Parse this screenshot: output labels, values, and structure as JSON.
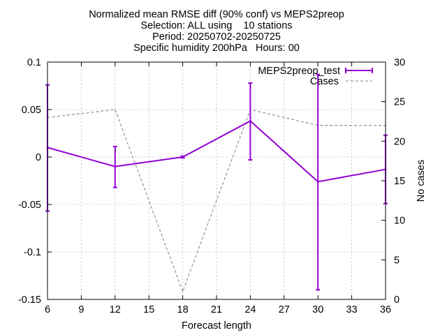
{
  "chart_data": {
    "type": "line",
    "title_lines": [
      "Normalized mean RMSE diff (90% conf) vs MEPS2preop",
      "Selection: ALL using    10 stations",
      "Period: 20250702-20250725",
      "Specific humidity 200hPa   Hours: 00"
    ],
    "xlabel": "Forecast length",
    "ylabel": "",
    "y2label": "No cases",
    "xlim": [
      6,
      36
    ],
    "ylim": [
      -0.15,
      0.1
    ],
    "y2lim": [
      0,
      30
    ],
    "xticks": [
      6,
      9,
      12,
      15,
      18,
      21,
      24,
      27,
      30,
      33,
      36
    ],
    "yticks": [
      0.1,
      0.05,
      0,
      -0.05,
      -0.1,
      -0.15
    ],
    "ytick_labels": [
      "0.1",
      "0.05",
      "0",
      "-0.05",
      "-0.1",
      "-0.15"
    ],
    "y2ticks": [
      30,
      25,
      20,
      15,
      10,
      5,
      0
    ],
    "grid": true,
    "legend_position": "top-right",
    "series": [
      {
        "name": "MEPS2preop_test",
        "axis": "y",
        "color": "#9400d3",
        "style": "solid-errorbars",
        "x": [
          6,
          12,
          18,
          24,
          30,
          36
        ],
        "y": [
          0.01,
          -0.01,
          0.0,
          0.038,
          -0.026,
          -0.013
        ],
        "err_low": [
          -0.057,
          -0.032,
          -0.001,
          -0.003,
          -0.14,
          -0.049
        ],
        "err_high": [
          0.076,
          0.011,
          0.001,
          0.078,
          0.087,
          0.023
        ]
      },
      {
        "name": "Cases",
        "axis": "y2",
        "color": "#999999",
        "style": "dashed",
        "x": [
          6,
          12,
          18,
          24,
          30,
          36
        ],
        "y": [
          23,
          24,
          1,
          24,
          22,
          22
        ]
      }
    ]
  }
}
